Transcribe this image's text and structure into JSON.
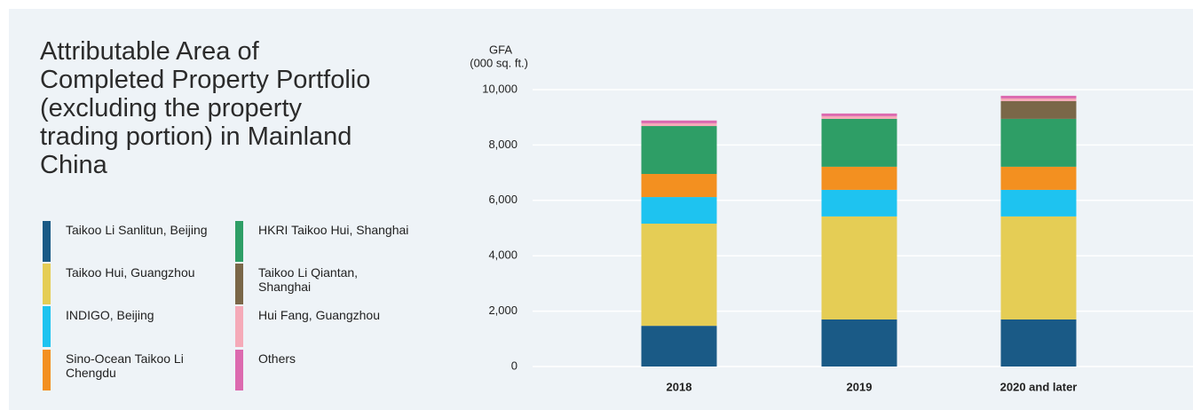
{
  "chart_data": {
    "type": "bar",
    "stacked": true,
    "title": "Attributable Area of Completed Property Portfolio (excluding the property trading portion) in Mainland China",
    "y_label": [
      "GFA",
      "(000 sq. ft.)"
    ],
    "categories": [
      "2018",
      "2019",
      "2020 and later"
    ],
    "series": [
      {
        "name": "Taikoo Li Sanlitun, Beijing",
        "color": "#1a5a86",
        "values": [
          1470,
          1700,
          1700
        ]
      },
      {
        "name": "Taikoo Hui, Guangzhou",
        "color": "#e5cd55",
        "values": [
          3690,
          3720,
          3720
        ]
      },
      {
        "name": "INDIGO, Beijing",
        "color": "#1ec3f0",
        "values": [
          960,
          960,
          960
        ]
      },
      {
        "name": "Sino-Ocean Taikoo Li Chengdu",
        "color": "#f39020",
        "values": [
          835,
          835,
          835
        ]
      },
      {
        "name": "HKRI Taikoo Hui, Shanghai",
        "color": "#2e9e66",
        "values": [
          1730,
          1730,
          1730
        ]
      },
      {
        "name": "Taikoo Li Qiantan, Shanghai",
        "color": "#7a6748",
        "values": [
          0,
          0,
          640
        ]
      },
      {
        "name": "Hui Fang, Guangzhou",
        "color": "#f5aab8",
        "values": [
          100,
          96,
          96
        ]
      },
      {
        "name": "Others",
        "color": "#dc6aaf",
        "values": [
          100,
          97,
          97
        ]
      }
    ],
    "ylim": [
      0,
      10000
    ],
    "yticks": [
      0,
      {
        "value": 2000,
        "label": "2,000"
      },
      {
        "value": 4000,
        "label": "4,000"
      },
      {
        "value": 6000,
        "label": "6,000"
      },
      {
        "value": 8000,
        "label": "8,000"
      },
      {
        "value": 10000,
        "label": "10,000"
      }
    ],
    "grid": true
  }
}
